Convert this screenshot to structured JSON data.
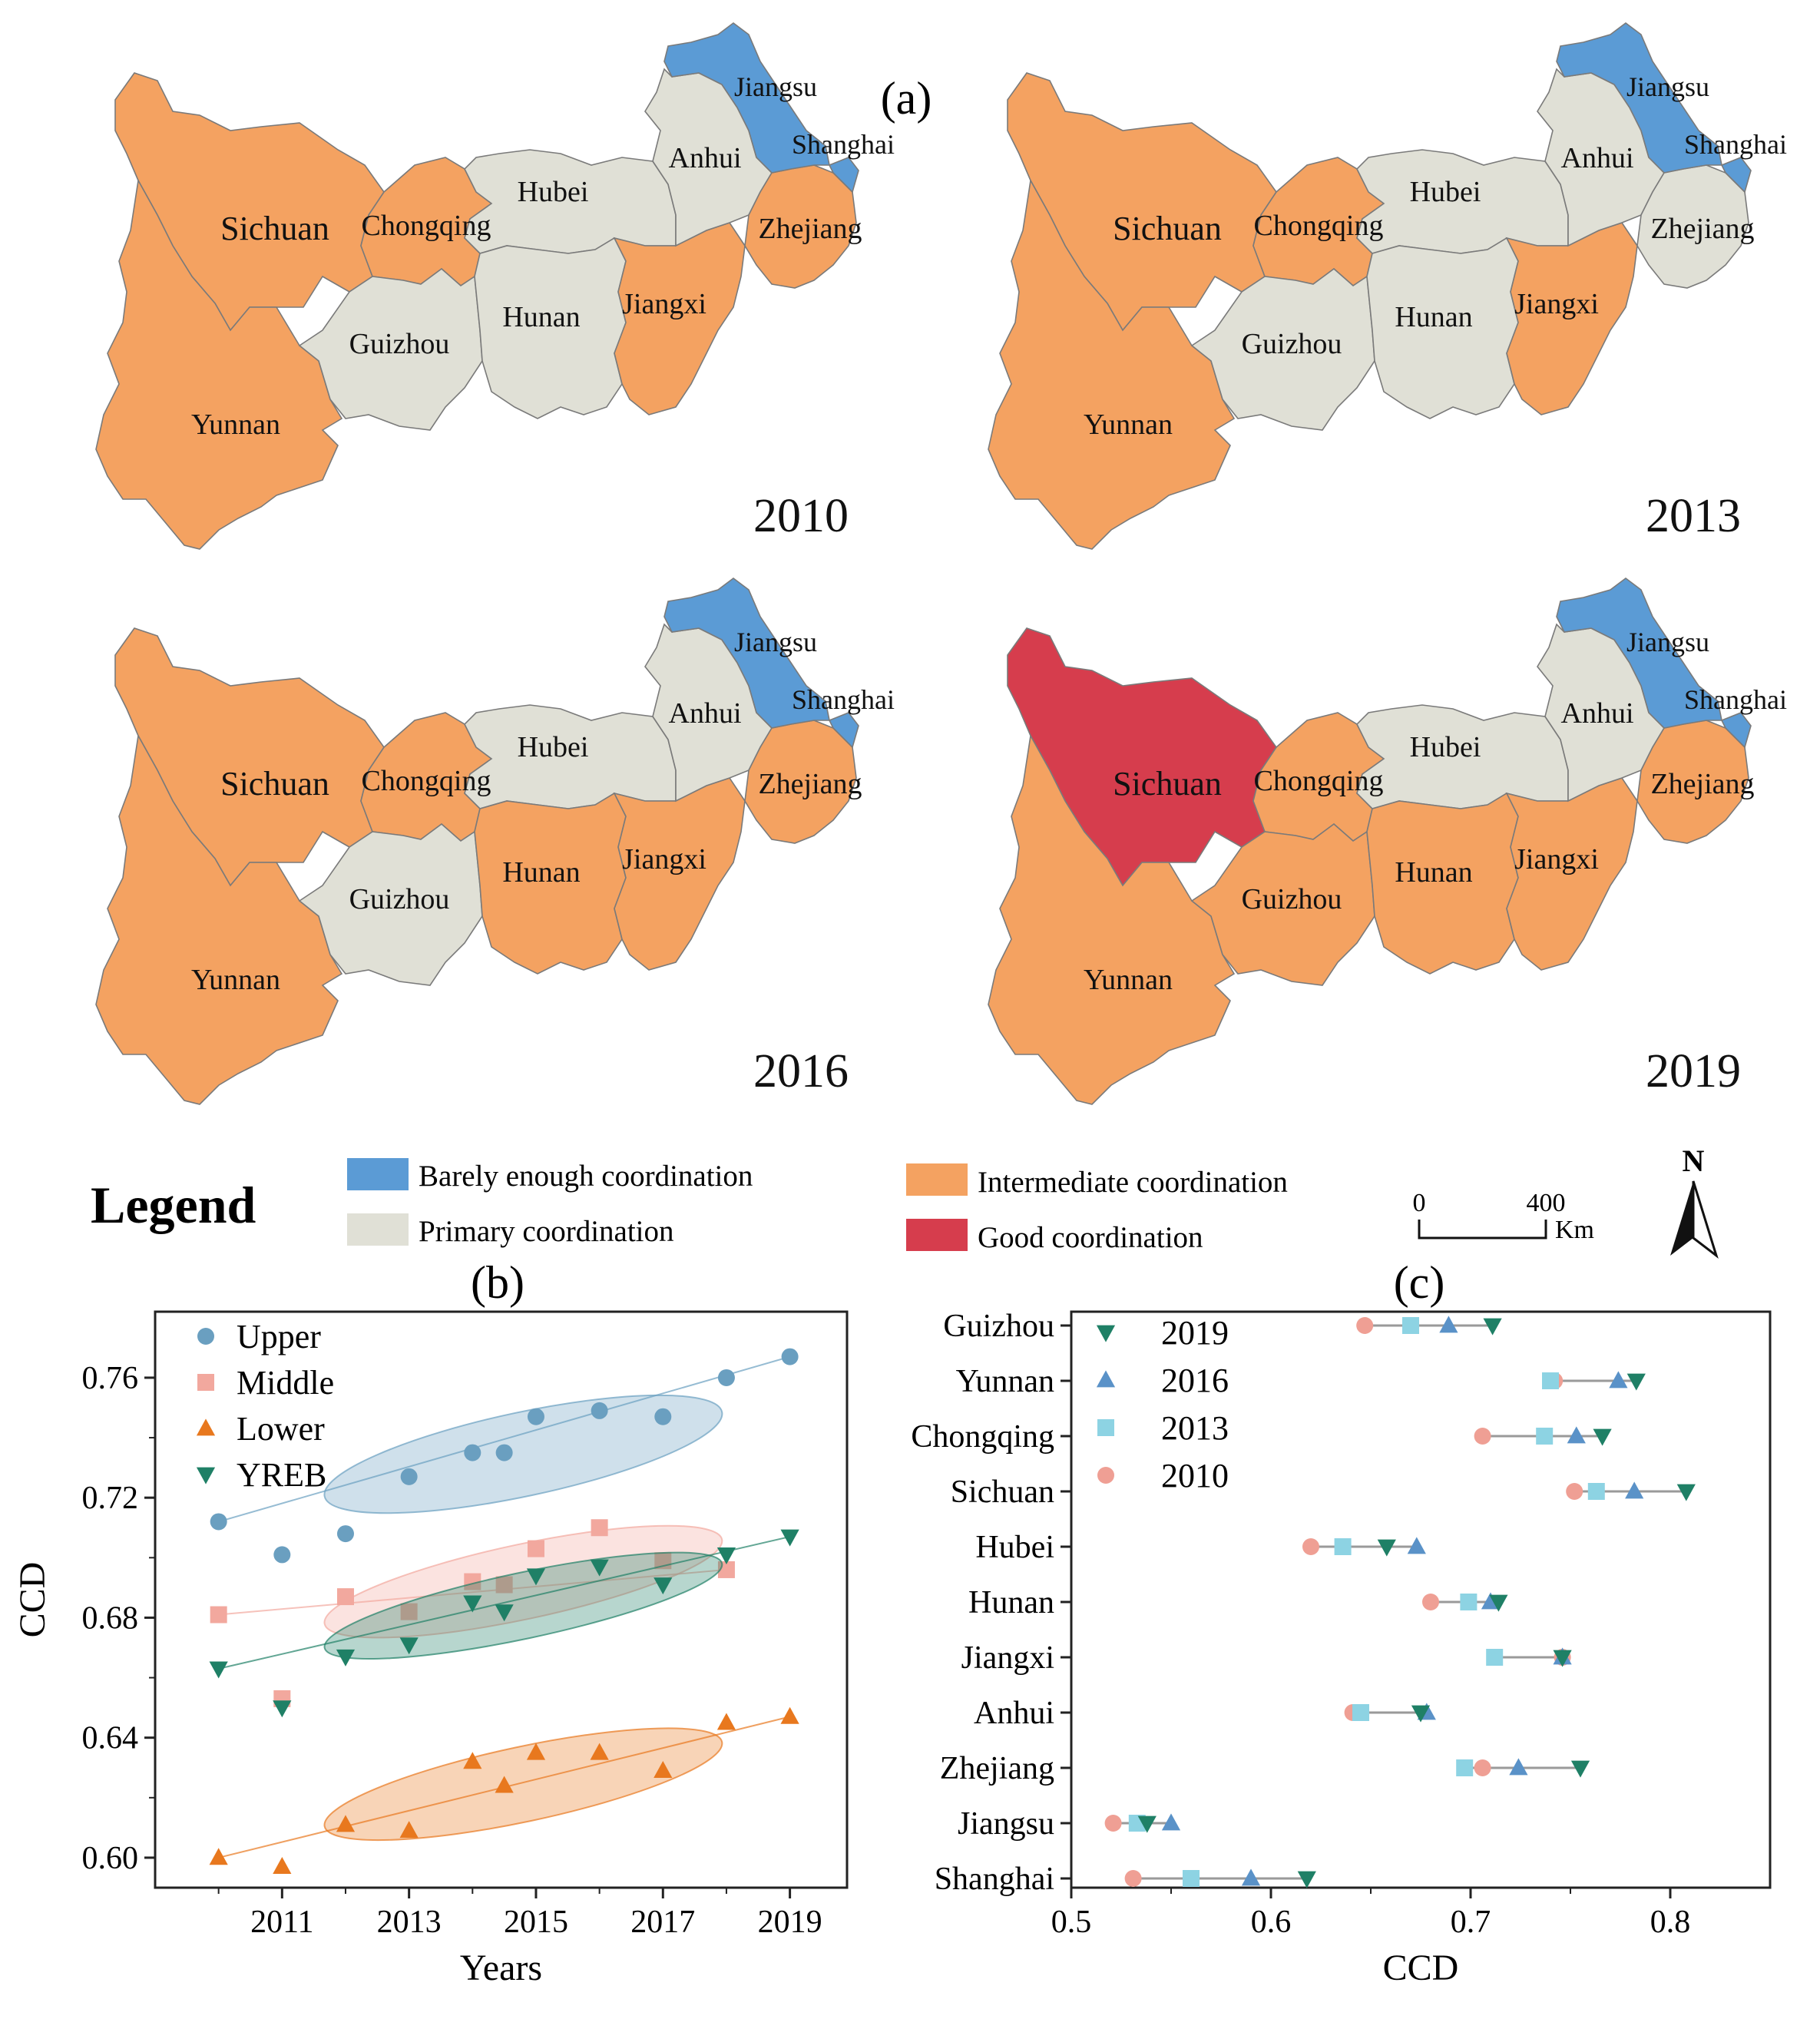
{
  "panel_labels": {
    "a": "(a)",
    "b": "(b)",
    "c": "(c)"
  },
  "colors": {
    "barely": "#5b9bd5",
    "primary": "#e0e0d6",
    "intermediate": "#f4a261",
    "good": "#d63d4d",
    "border": "#7a7a7a",
    "upper": "#6a9fc0",
    "middle": "#f2a89e",
    "lower": "#e8781e",
    "yreb": "#1f8066",
    "y2019": "#1f8066",
    "y2016": "#5a92c8",
    "y2013": "#8dd3e3",
    "y2010": "#ef9f94"
  },
  "maps": [
    {
      "year": "2010",
      "regions": [
        {
          "name": "Sichuan",
          "class": "intermediate"
        },
        {
          "name": "Chongqing",
          "class": "intermediate"
        },
        {
          "name": "Yunnan",
          "class": "intermediate"
        },
        {
          "name": "Guizhou",
          "class": "primary"
        },
        {
          "name": "Hubei",
          "class": "primary"
        },
        {
          "name": "Hunan",
          "class": "primary"
        },
        {
          "name": "Jiangxi",
          "class": "intermediate"
        },
        {
          "name": "Anhui",
          "class": "primary"
        },
        {
          "name": "Zhejiang",
          "class": "intermediate"
        },
        {
          "name": "Jiangsu",
          "class": "barely"
        },
        {
          "name": "Shanghai",
          "class": "barely"
        }
      ]
    },
    {
      "year": "2013",
      "regions": [
        {
          "name": "Sichuan",
          "class": "intermediate"
        },
        {
          "name": "Chongqing",
          "class": "intermediate"
        },
        {
          "name": "Yunnan",
          "class": "intermediate"
        },
        {
          "name": "Guizhou",
          "class": "primary"
        },
        {
          "name": "Hubei",
          "class": "primary"
        },
        {
          "name": "Hunan",
          "class": "primary"
        },
        {
          "name": "Jiangxi",
          "class": "intermediate"
        },
        {
          "name": "Anhui",
          "class": "primary"
        },
        {
          "name": "Zhejiang",
          "class": "primary"
        },
        {
          "name": "Jiangsu",
          "class": "barely"
        },
        {
          "name": "Shanghai",
          "class": "barely"
        }
      ]
    },
    {
      "year": "2016",
      "regions": [
        {
          "name": "Sichuan",
          "class": "intermediate"
        },
        {
          "name": "Chongqing",
          "class": "intermediate"
        },
        {
          "name": "Yunnan",
          "class": "intermediate"
        },
        {
          "name": "Guizhou",
          "class": "primary"
        },
        {
          "name": "Hubei",
          "class": "primary"
        },
        {
          "name": "Hunan",
          "class": "intermediate"
        },
        {
          "name": "Jiangxi",
          "class": "intermediate"
        },
        {
          "name": "Anhui",
          "class": "primary"
        },
        {
          "name": "Zhejiang",
          "class": "intermediate"
        },
        {
          "name": "Jiangsu",
          "class": "barely"
        },
        {
          "name": "Shanghai",
          "class": "barely"
        }
      ]
    },
    {
      "year": "2019",
      "regions": [
        {
          "name": "Sichuan",
          "class": "good"
        },
        {
          "name": "Chongqing",
          "class": "intermediate"
        },
        {
          "name": "Yunnan",
          "class": "intermediate"
        },
        {
          "name": "Guizhou",
          "class": "intermediate"
        },
        {
          "name": "Hubei",
          "class": "primary"
        },
        {
          "name": "Hunan",
          "class": "intermediate"
        },
        {
          "name": "Jiangxi",
          "class": "intermediate"
        },
        {
          "name": "Anhui",
          "class": "primary"
        },
        {
          "name": "Zhejiang",
          "class": "intermediate"
        },
        {
          "name": "Jiangsu",
          "class": "barely"
        },
        {
          "name": "Shanghai",
          "class": "barely"
        }
      ]
    }
  ],
  "legend": {
    "title": "Legend",
    "items": [
      {
        "key": "barely",
        "label": "Barely enough coordination"
      },
      {
        "key": "primary",
        "label": "Primary coordination"
      },
      {
        "key": "intermediate",
        "label": "Intermediate coordination"
      },
      {
        "key": "good",
        "label": "Good coordination"
      }
    ],
    "scale": {
      "start": "0",
      "end": "400",
      "unit": "Km"
    },
    "north": "N"
  },
  "chart_data": [
    {
      "id": "b",
      "type": "scatter",
      "title": "(b)",
      "xlabel": "Years",
      "ylabel": "CCD",
      "xlim": [
        2009.0,
        2019.9
      ],
      "ylim": [
        0.59,
        0.782
      ],
      "xticks": [
        2011,
        2013,
        2015,
        2017,
        2019
      ],
      "yticks": [
        0.6,
        0.64,
        0.68,
        0.72,
        0.76
      ],
      "ytick_labels": [
        "0.60",
        "0.64",
        "0.68",
        "0.72",
        "0.76"
      ],
      "series": [
        {
          "name": "Upper",
          "marker": "circle",
          "color": "upper",
          "x": [
            2010,
            2011,
            2012,
            2013,
            2014,
            2014.5,
            2015,
            2016,
            2017,
            2018,
            2019
          ],
          "y": [
            0.712,
            0.701,
            0.708,
            0.727,
            0.735,
            0.735,
            0.747,
            0.749,
            0.747,
            0.76,
            0.767
          ],
          "ellipse": {
            "cx": 2014.8,
            "cy": 0.7345,
            "rx": 3.2,
            "ry": 0.014
          }
        },
        {
          "name": "Middle",
          "marker": "square",
          "color": "middle",
          "x": [
            2010,
            2011,
            2012,
            2013,
            2014,
            2014.5,
            2015,
            2016,
            2017,
            2018
          ],
          "y": [
            0.681,
            0.653,
            0.687,
            0.682,
            0.692,
            0.691,
            0.703,
            0.71,
            0.699,
            0.696
          ],
          "ellipse": {
            "cx": 2014.8,
            "cy": 0.692,
            "rx": 3.2,
            "ry": 0.0125
          }
        },
        {
          "name": "Lower",
          "marker": "triangle-up",
          "color": "lower",
          "x": [
            2010,
            2011,
            2012,
            2013,
            2014,
            2014.5,
            2015,
            2016,
            2017,
            2018,
            2019
          ],
          "y": [
            0.6,
            0.597,
            0.611,
            0.609,
            0.632,
            0.624,
            0.635,
            0.635,
            0.629,
            0.645,
            0.647
          ],
          "ellipse": {
            "cx": 2014.8,
            "cy": 0.6245,
            "rx": 3.2,
            "ry": 0.0125
          }
        },
        {
          "name": "YREB",
          "marker": "triangle-down",
          "color": "yreb",
          "x": [
            2010,
            2011,
            2012,
            2013,
            2014,
            2014.5,
            2015,
            2016,
            2017,
            2018,
            2019
          ],
          "y": [
            0.663,
            0.65,
            0.667,
            0.671,
            0.685,
            0.682,
            0.694,
            0.697,
            0.691,
            0.701,
            0.707
          ],
          "ellipse": {
            "cx": 2014.8,
            "cy": 0.684,
            "rx": 3.2,
            "ry": 0.011
          }
        }
      ],
      "legend_position": "top-left"
    },
    {
      "id": "c",
      "type": "scatter",
      "title": "(c)",
      "xlabel": "CCD",
      "ylabel": "",
      "xlim": [
        0.5,
        0.85
      ],
      "xticks": [
        0.5,
        0.6,
        0.7,
        0.8
      ],
      "xtick_labels": [
        "0.5",
        "0.6",
        "0.7",
        "0.8"
      ],
      "categories": [
        "Guizhou",
        "Yunnan",
        "Chongqing",
        "Sichuan",
        "Hubei",
        "Hunan",
        "Jiangxi",
        "Anhui",
        "Zhejiang",
        "Jiangsu",
        "Shanghai"
      ],
      "series": [
        {
          "name": "2019",
          "marker": "triangle-down",
          "color": "y2019",
          "values": [
            0.711,
            0.783,
            0.766,
            0.808,
            0.658,
            0.714,
            0.746,
            0.675,
            0.755,
            0.538,
            0.618
          ]
        },
        {
          "name": "2016",
          "marker": "triangle-up",
          "color": "y2016",
          "values": [
            0.689,
            0.774,
            0.753,
            0.782,
            0.673,
            0.71,
            0.746,
            0.678,
            0.724,
            0.55,
            0.59
          ]
        },
        {
          "name": "2013",
          "marker": "square",
          "color": "y2013",
          "values": [
            0.67,
            0.74,
            0.737,
            0.763,
            0.636,
            0.699,
            0.712,
            0.645,
            0.697,
            0.533,
            0.56
          ]
        },
        {
          "name": "2010",
          "marker": "circle",
          "color": "y2010",
          "values": [
            0.647,
            0.742,
            0.706,
            0.752,
            0.62,
            0.68,
            0.746,
            0.641,
            0.706,
            0.521,
            0.531
          ]
        }
      ],
      "legend_position": "top-left"
    }
  ]
}
